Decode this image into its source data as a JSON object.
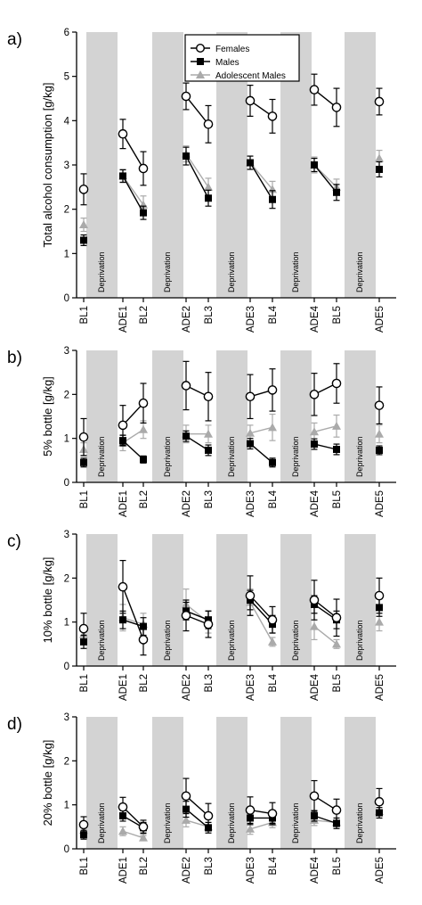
{
  "chart_data": [
    {
      "type": "line",
      "panel_label": "a)",
      "ylabel": "Total alcohol consumption [g/kg]",
      "ylim": [
        0,
        6
      ],
      "yticks": [
        "0",
        "1",
        "2",
        "3",
        "4",
        "5",
        "6"
      ],
      "categories": [
        "BL1",
        "ADE1",
        "BL2",
        "ADE2",
        "BL3",
        "ADE3",
        "BL4",
        "ADE4",
        "BL5",
        "ADE5"
      ],
      "deprivation_label": "Deprivation",
      "legend": {
        "placement": "top-right",
        "entries": [
          "Females",
          "Males",
          "Adolescent Males"
        ]
      },
      "series": [
        {
          "name": "Females",
          "color": "#000000",
          "marker": "open-circle",
          "values": [
            2.45,
            3.7,
            2.92,
            4.55,
            3.92,
            4.45,
            4.1,
            4.7,
            4.3,
            4.43
          ],
          "errors": [
            0.35,
            0.33,
            0.38,
            0.3,
            0.42,
            0.35,
            0.38,
            0.35,
            0.43,
            0.3
          ]
        },
        {
          "name": "Males",
          "color": "#000000",
          "marker": "filled-square",
          "values": [
            1.3,
            2.75,
            1.92,
            3.2,
            2.25,
            3.05,
            2.22,
            3.0,
            2.38,
            2.9
          ],
          "errors": [
            0.12,
            0.14,
            0.15,
            0.2,
            0.18,
            0.15,
            0.2,
            0.15,
            0.18,
            0.17
          ]
        },
        {
          "name": "Adolescent Males",
          "color": "#aaaaaa",
          "marker": "filled-triangle",
          "values": [
            1.65,
            2.75,
            2.1,
            3.25,
            2.5,
            3.05,
            2.45,
            3.0,
            2.5,
            3.15
          ],
          "errors": [
            0.15,
            0.15,
            0.2,
            0.18,
            0.2,
            0.15,
            0.18,
            0.18,
            0.18,
            0.18
          ]
        }
      ]
    },
    {
      "type": "line",
      "panel_label": "b)",
      "ylabel": "5% bottle [g/kg]",
      "ylim": [
        0,
        3
      ],
      "yticks": [
        "0",
        "1",
        "2",
        "3"
      ],
      "categories": [
        "BL1",
        "ADE1",
        "BL2",
        "ADE2",
        "BL3",
        "ADE3",
        "BL4",
        "ADE4",
        "BL5",
        "ADE5"
      ],
      "deprivation_label": "Deprivation",
      "series": [
        {
          "name": "Females",
          "color": "#000000",
          "marker": "open-circle",
          "values": [
            1.03,
            1.3,
            1.8,
            2.2,
            1.95,
            1.95,
            2.1,
            2.0,
            2.25,
            1.75
          ],
          "errors": [
            0.42,
            0.45,
            0.45,
            0.55,
            0.55,
            0.5,
            0.48,
            0.48,
            0.45,
            0.42
          ]
        },
        {
          "name": "Males",
          "color": "#000000",
          "marker": "filled-square",
          "values": [
            0.45,
            0.95,
            0.52,
            1.05,
            0.73,
            0.88,
            0.45,
            0.87,
            0.75,
            0.73
          ],
          "errors": [
            0.1,
            0.12,
            0.08,
            0.12,
            0.12,
            0.12,
            0.1,
            0.12,
            0.12,
            0.1
          ]
        },
        {
          "name": "Adolescent Males",
          "color": "#aaaaaa",
          "marker": "filled-triangle",
          "values": [
            0.75,
            0.9,
            1.2,
            1.1,
            1.1,
            1.12,
            1.25,
            1.15,
            1.28,
            1.1
          ],
          "errors": [
            0.15,
            0.18,
            0.2,
            0.2,
            0.2,
            0.18,
            0.3,
            0.2,
            0.25,
            0.2
          ]
        }
      ]
    },
    {
      "type": "line",
      "panel_label": "c)",
      "ylabel": "10% bottle [g/kg]",
      "ylim": [
        0,
        3
      ],
      "yticks": [
        "0",
        "1",
        "2",
        "3"
      ],
      "categories": [
        "BL1",
        "ADE1",
        "BL2",
        "ADE2",
        "BL3",
        "ADE3",
        "BL4",
        "ADE4",
        "BL5",
        "ADE5"
      ],
      "deprivation_label": "Deprivation",
      "series": [
        {
          "name": "Females",
          "color": "#000000",
          "marker": "open-circle",
          "values": [
            0.85,
            1.8,
            0.6,
            1.15,
            0.95,
            1.6,
            1.05,
            1.5,
            1.1,
            1.6
          ],
          "errors": [
            0.35,
            0.6,
            0.35,
            0.35,
            0.3,
            0.45,
            0.3,
            0.45,
            0.42,
            0.4
          ]
        },
        {
          "name": "Males",
          "color": "#000000",
          "marker": "filled-square",
          "values": [
            0.55,
            1.05,
            0.9,
            1.25,
            1.05,
            1.5,
            0.95,
            1.4,
            1.05,
            1.33
          ],
          "errors": [
            0.15,
            0.2,
            0.2,
            0.2,
            0.2,
            0.22,
            0.2,
            0.2,
            0.2,
            0.2
          ]
        },
        {
          "name": "Adolescent Males",
          "color": "#aaaaaa",
          "marker": "filled-triangle",
          "values": [
            0.72,
            1.1,
            0.95,
            1.4,
            1.0,
            1.45,
            0.55,
            0.9,
            0.5,
            1.0
          ],
          "errors": [
            0.2,
            0.3,
            0.25,
            0.35,
            0.25,
            0.3,
            0.1,
            0.3,
            0.1,
            0.2
          ]
        }
      ]
    },
    {
      "type": "line",
      "panel_label": "d)",
      "ylabel": "20% bottle [g/kg]",
      "ylim": [
        0,
        3
      ],
      "yticks": [
        "0",
        "1",
        "2",
        "3"
      ],
      "categories": [
        "BL1",
        "ADE1",
        "BL2",
        "ADE2",
        "BL3",
        "ADE3",
        "BL4",
        "ADE4",
        "BL5",
        "ADE5"
      ],
      "deprivation_label": "Deprivation",
      "series": [
        {
          "name": "Females",
          "color": "#000000",
          "marker": "open-circle",
          "values": [
            0.55,
            0.95,
            0.5,
            1.2,
            0.75,
            0.88,
            0.8,
            1.2,
            0.88,
            1.07
          ],
          "errors": [
            0.18,
            0.22,
            0.15,
            0.4,
            0.28,
            0.3,
            0.25,
            0.35,
            0.25,
            0.3
          ]
        },
        {
          "name": "Males",
          "color": "#000000",
          "marker": "filled-square",
          "values": [
            0.32,
            0.75,
            0.48,
            0.9,
            0.48,
            0.7,
            0.7,
            0.75,
            0.58,
            0.82
          ],
          "errors": [
            0.1,
            0.12,
            0.12,
            0.18,
            0.12,
            0.15,
            0.12,
            0.12,
            0.12,
            0.12
          ]
        },
        {
          "name": "Adolescent Males",
          "color": "#aaaaaa",
          "marker": "filled-triangle",
          "values": [
            0.42,
            0.4,
            0.25,
            0.65,
            0.5,
            0.45,
            0.6,
            0.65,
            0.6,
            0.85
          ],
          "errors": [
            0.1,
            0.1,
            0.05,
            0.15,
            0.1,
            0.12,
            0.12,
            0.12,
            0.1,
            0.15
          ]
        }
      ]
    }
  ]
}
